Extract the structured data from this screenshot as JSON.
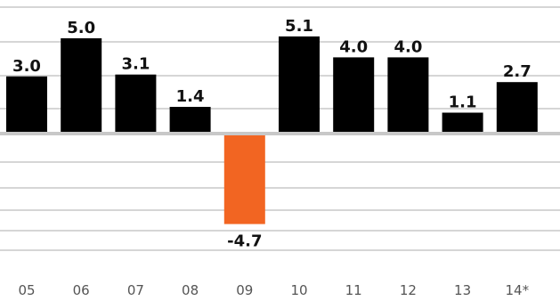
{
  "chart_data": {
    "type": "bar",
    "categories": [
      "05",
      "06",
      "07",
      "08",
      "09",
      "10",
      "11",
      "12",
      "13",
      "14*"
    ],
    "values": [
      3.0,
      5.0,
      3.1,
      1.4,
      -4.7,
      5.1,
      4.0,
      4.0,
      1.1,
      2.7
    ],
    "value_labels": [
      "3.0",
      "5.0",
      "3.1",
      "1.4",
      "-4.7",
      "5.1",
      "4.0",
      "4.0",
      "1.1",
      "2.7"
    ],
    "title": "",
    "xlabel": "",
    "ylabel": "",
    "ylim": [
      -5.4,
      6.4
    ],
    "grid": true,
    "colors": {
      "positive": "#000000",
      "negative": "#f26522",
      "grid": "#c8c8c8",
      "label": "#111111",
      "tick": "#555555"
    }
  }
}
